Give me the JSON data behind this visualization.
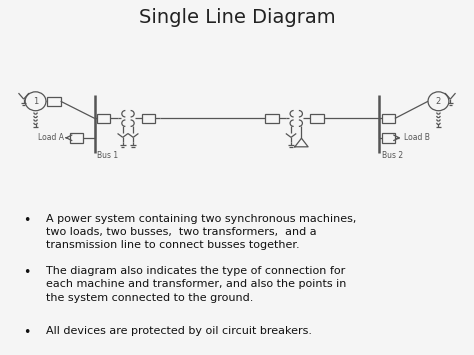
{
  "title": "Single Line Diagram",
  "title_fontsize": 14,
  "title_color": "#222222",
  "background_color": "#f5f5f5",
  "line_color": "#555555",
  "accent_bar_color": "#5b9bd5",
  "bullet_points": [
    "A power system containing two synchronous machines,\ntwo loads, two busses,  two transformers,  and a\ntransmission line to connect busses together.",
    "The diagram also indicates the type of connection for\neach machine and transformer, and also the points in\nthe system connected to the ground.",
    "All devices are protected by oil circuit breakers."
  ],
  "bullet_fontsize": 8.0,
  "bullet_color": "#111111"
}
